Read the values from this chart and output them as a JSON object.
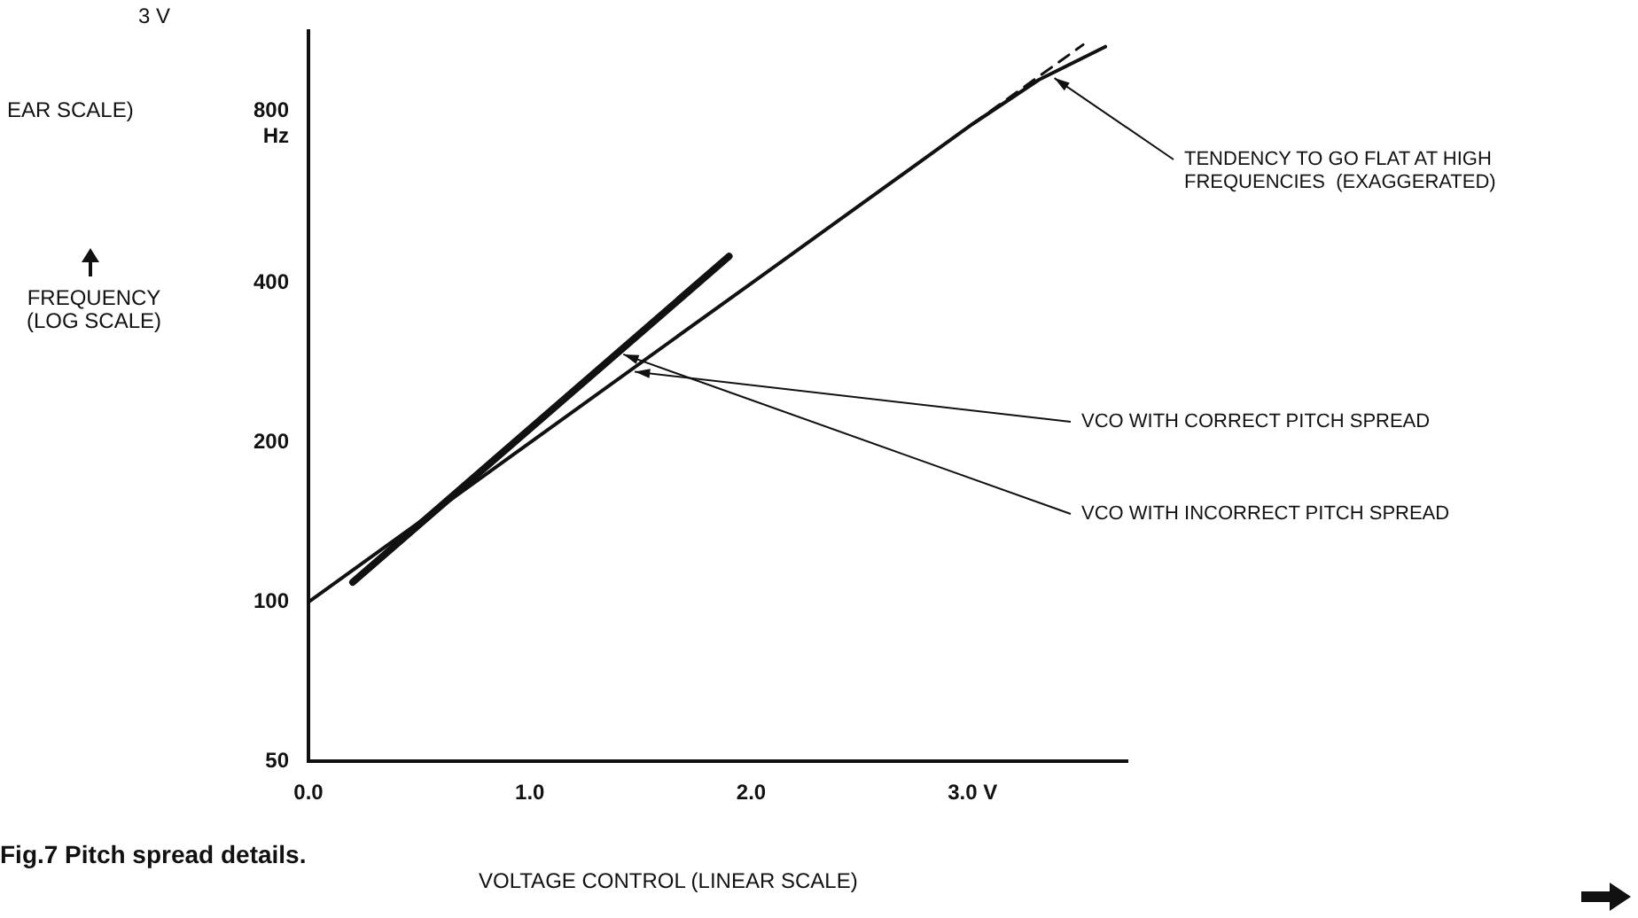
{
  "chart_data": {
    "type": "line",
    "title": "Fig.7 Pitch spread details.",
    "xlabel": "VOLTAGE CONTROL  (LINEAR SCALE)",
    "ylabel": "FREQUENCY (LOG SCALE)",
    "log": "y",
    "grid": false,
    "legend": false,
    "marker": "none",
    "xlim": [
      0,
      3.7
    ],
    "xticks": [
      {
        "value": 0,
        "label": "0.0"
      },
      {
        "value": 1,
        "label": "1.0"
      },
      {
        "value": 2,
        "label": "2.0"
      },
      {
        "value": 3,
        "label": "3.0 V"
      }
    ],
    "ylim": [
      50,
      1200
    ],
    "yticks": [
      50,
      100,
      200,
      400,
      {
        "value": 800,
        "label": "800 Hz"
      }
    ],
    "series": [
      {
        "color": "#111111",
        "x": [
          0,
          1,
          2,
          3,
          3.3,
          3.6
        ],
        "values": [
          100,
          200,
          400,
          800,
          970,
          1120
        ],
        "line_style": "solid"
      },
      {
        "color": "#111111",
        "x": [
          3,
          3.5
        ],
        "values": [
          800,
          1130
        ],
        "line_style": "dashed"
      },
      {
        "color": "#111111",
        "x": [
          0.2,
          1.9
        ],
        "values": [
          109,
          450
        ],
        "line_style": "solid"
      }
    ],
    "annotations": [
      {
        "text": "TENDENCY TO GO FLAT AT HIGH FREQUENCIES  (EXAGGERATED)",
        "x": 3.35,
        "y": 990
      },
      {
        "text": "VCO WITH CORRECT PITCH SPREAD",
        "x": 1.45,
        "y": 273
      },
      {
        "text": "VCO WITH INCORRECT PITCH SPREAD",
        "x": 1.4,
        "y": 296
      },
      "3 V",
      "EAR SCALE)"
    ]
  }
}
